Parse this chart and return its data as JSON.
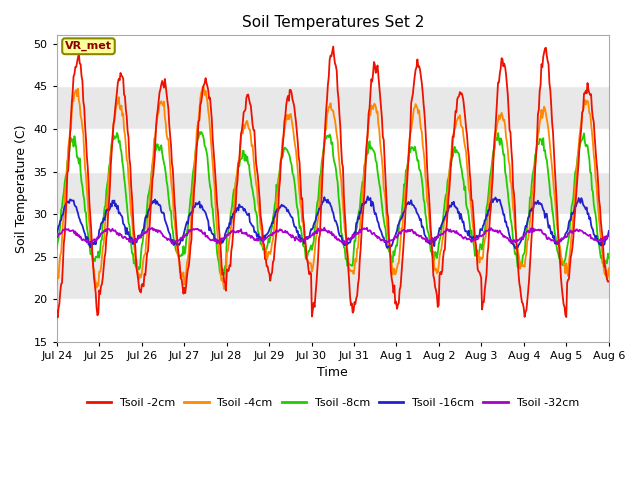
{
  "title": "Soil Temperatures Set 2",
  "xlabel": "Time",
  "ylabel": "Soil Temperature (C)",
  "ylim": [
    15,
    51
  ],
  "yticks": [
    15,
    20,
    25,
    30,
    35,
    40,
    45,
    50
  ],
  "bg_color": "#d8d8d8",
  "band_colors": [
    "#ffffff",
    "#e8e8e8"
  ],
  "grid_color": "#ffffff",
  "line_colors": {
    "2cm": "#ee1100",
    "4cm": "#ff8800",
    "8cm": "#22cc00",
    "16cm": "#2222cc",
    "32cm": "#aa00cc"
  },
  "legend_labels": [
    "Tsoil -2cm",
    "Tsoil -4cm",
    "Tsoil -8cm",
    "Tsoil -16cm",
    "Tsoil -32cm"
  ],
  "annotation_text": "VR_met",
  "annotation_color": "#880000",
  "annotation_bg": "#ffff99",
  "annotation_border": "#888800",
  "xtick_labels": [
    "Jul 24",
    "Jul 25",
    "Jul 26",
    "Jul 27",
    "Jul 28",
    "Jul 29",
    "Jul 30",
    "Jul 31",
    "Aug 1",
    "Aug 2",
    "Aug 3",
    "Aug 4",
    "Aug 5",
    "Aug 6"
  ],
  "n_days": 13,
  "pts_per_day": 48,
  "seed": 12345,
  "t2_mean": 33.5,
  "t2_amp": 13.5,
  "t2_phase": 0.0,
  "t4_mean": 33.0,
  "t4_amp": 10.5,
  "t4_phase": 0.25,
  "t8_mean": 31.5,
  "t8_amp": 7.5,
  "t8_phase": 0.65,
  "t16_mean": 29.0,
  "t16_amp": 2.5,
  "t16_phase": 1.1,
  "t32_mean": 27.5,
  "t32_amp": 0.7,
  "t32_phase": 1.5
}
